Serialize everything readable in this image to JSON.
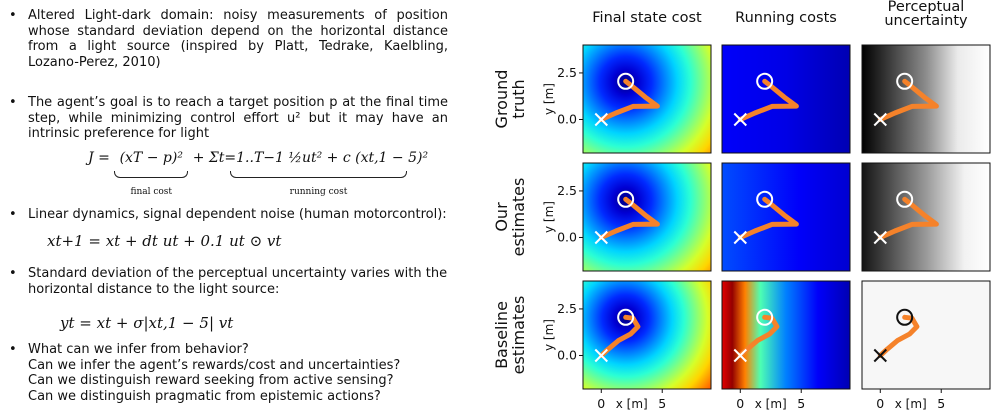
{
  "bullets": [
    {
      "text": "Altered Light-dark domain:  noisy measurements of position whose standard deviation depend on the horizontal distance from a light source (inspired by Platt, Tedrake, Kaelbling, Lozano-Perez, 2010)"
    },
    {
      "text": "The agent’s goal is to reach a target position p at the final time step, while minimizing control effort u² but it may have an intrinsic preference for light"
    },
    {
      "text": "Linear dynamics, signal dependent noise (human motorcontrol):"
    },
    {
      "text": "Standard deviation of the perceptual uncertainty varies with the horizontal distance to the light source:"
    },
    {
      "lines": [
        "What can we infer from behavior?",
        "Can we infer the agent’s rewards/cost and uncertainties?",
        "Can we distinguish reward seeking from active sensing?",
        "Can we distinguish pragmatic from epistemic actions?"
      ]
    }
  ],
  "equations": {
    "cost_lhs": "J = ",
    "cost_final": "(xT − p)²",
    "cost_plus": " + ",
    "cost_running": "Σt=1..T−1 ½ut² + c (xt,1 − 5)²",
    "final_label": "final cost",
    "running_label": "running cost",
    "dynamics": "xt+1 = xt + dt ut + 0.1 ut ⊙ vt",
    "observation": "yt = xt + σ|xt,1 − 5| vt"
  },
  "figure": {
    "columns": [
      "Final state cost",
      "Running costs",
      "Perceptual\nuncertainty"
    ],
    "rows": [
      "Ground\ntruth",
      "Our\nestimates",
      "Baseline\nestimates"
    ],
    "y_axis_label": "y [m]",
    "x_axis_label": "x [m]",
    "y_ticks": [
      "2.5",
      "0.0"
    ],
    "x_ticks": [
      "0",
      "5"
    ],
    "colors": {
      "trajectory": "#f5822a",
      "start_marker": "#ffffff",
      "cmap": "jet"
    }
  }
}
